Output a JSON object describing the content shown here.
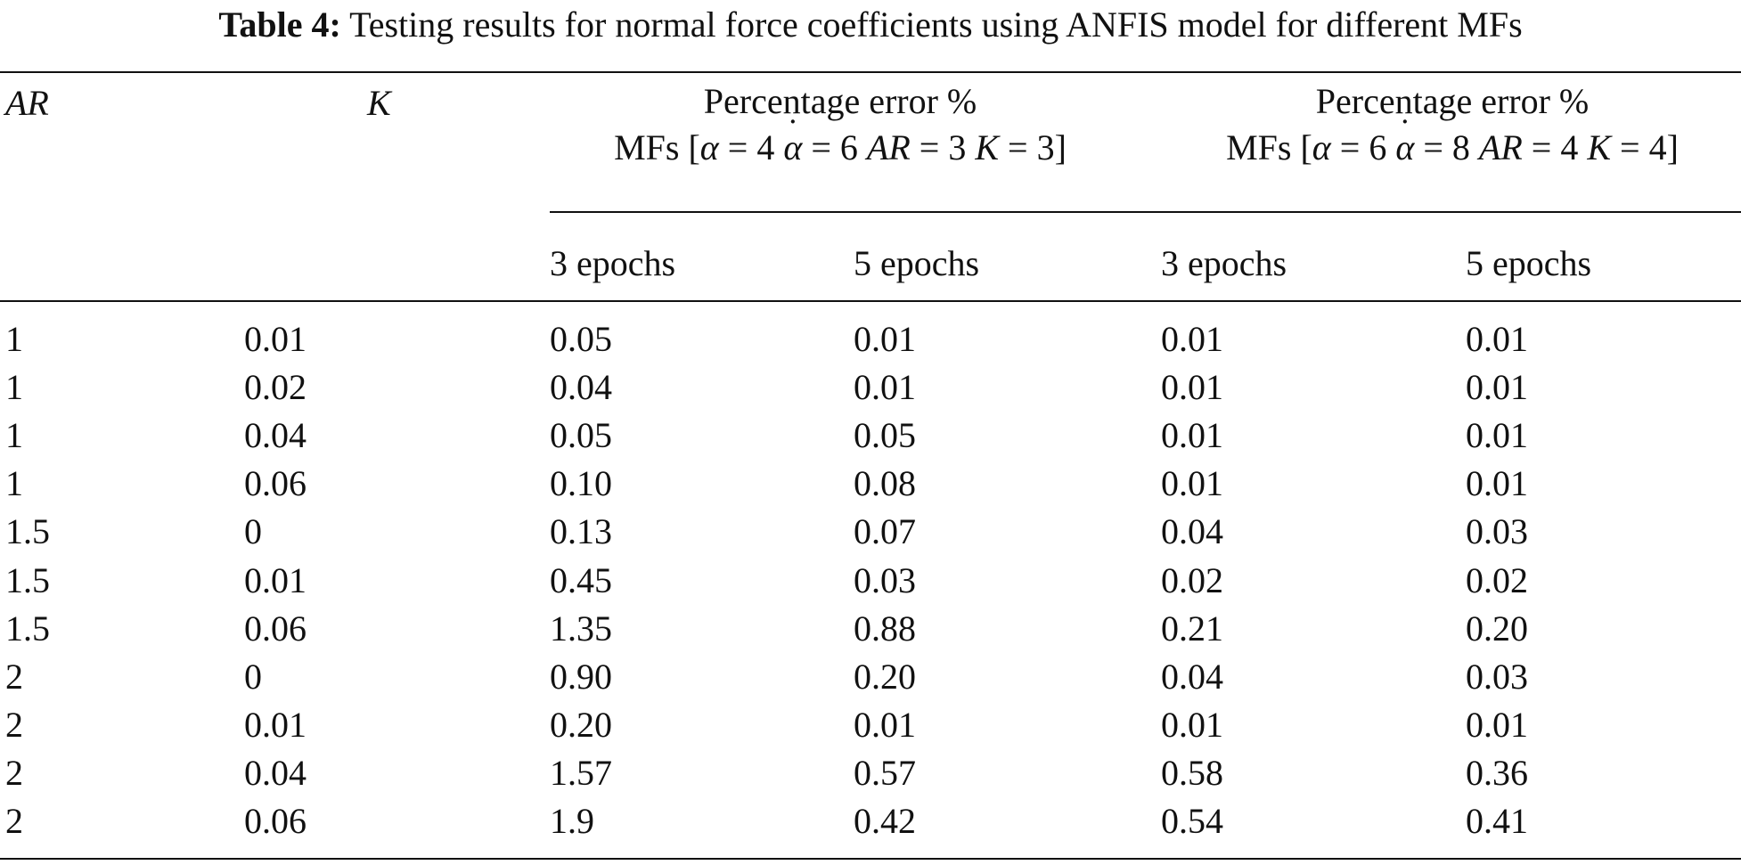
{
  "caption": {
    "label": "Table 4:",
    "text": "Testing results for normal force coefficients using ANFIS model for different MFs"
  },
  "header": {
    "col_ar": "AR",
    "col_k": "K",
    "group1": {
      "line1": "Percentage error %",
      "mfs_prefix": "MFs [",
      "alpha_sym": "α",
      "alpha_val": "= 4",
      "alphadot_sym": "α",
      "alphadot_val": "= 6",
      "ar_sym": "AR",
      "ar_val": "= 3",
      "k_sym": "K",
      "k_val": "= 3]"
    },
    "group2": {
      "line1": "Percentage error %",
      "mfs_prefix": "MFs [",
      "alpha_sym": "α",
      "alpha_val": "= 6",
      "alphadot_sym": "α",
      "alphadot_val": "= 8",
      "ar_sym": "AR",
      "ar_val": "= 4",
      "k_sym": "K",
      "k_val": "= 4]"
    },
    "sub": [
      "3 epochs",
      "5 epochs",
      "3 epochs",
      "5 epochs"
    ]
  },
  "rows": [
    [
      "1",
      "0.01",
      "0.05",
      "0.01",
      "0.01",
      "0.01"
    ],
    [
      "1",
      "0.02",
      "0.04",
      "0.01",
      "0.01",
      "0.01"
    ],
    [
      "1",
      "0.04",
      "0.05",
      "0.05",
      "0.01",
      "0.01"
    ],
    [
      "1",
      "0.06",
      "0.10",
      "0.08",
      "0.01",
      "0.01"
    ],
    [
      "1.5",
      "0",
      "0.13",
      "0.07",
      "0.04",
      "0.03"
    ],
    [
      "1.5",
      "0.01",
      "0.45",
      "0.03",
      "0.02",
      "0.02"
    ],
    [
      "1.5",
      "0.06",
      "1.35",
      "0.88",
      "0.21",
      "0.20"
    ],
    [
      "2",
      "0",
      "0.90",
      "0.20",
      "0.04",
      "0.03"
    ],
    [
      "2",
      "0.01",
      "0.20",
      "0.01",
      "0.01",
      "0.01"
    ],
    [
      "2",
      "0.04",
      "1.57",
      "0.57",
      "0.58",
      "0.36"
    ],
    [
      "2",
      "0.06",
      "1.9",
      "0.42",
      "0.54",
      "0.41"
    ]
  ]
}
